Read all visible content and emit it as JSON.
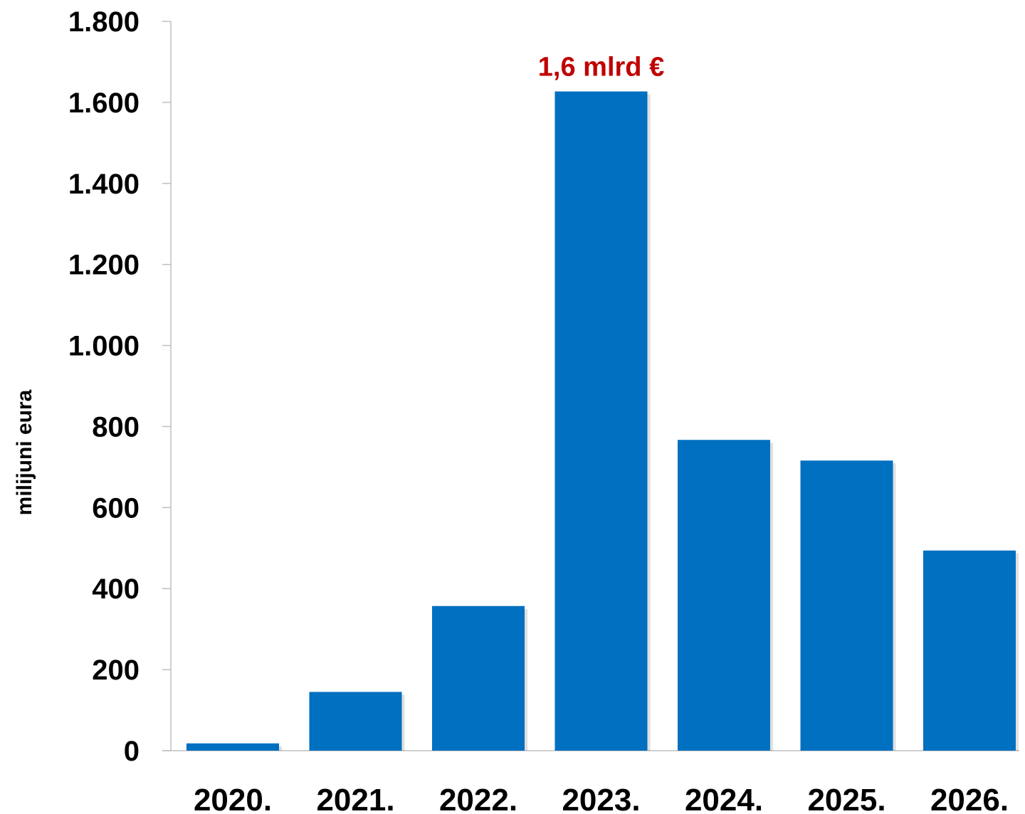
{
  "chart_data": {
    "type": "bar",
    "categories": [
      "2020.",
      "2021.",
      "2022.",
      "2023.",
      "2024.",
      "2025.",
      "2026."
    ],
    "values": [
      18,
      145,
      357,
      1627,
      767,
      716,
      494
    ],
    "xlabel": "",
    "ylabel": "milijuni eura",
    "ylim": [
      0,
      1800
    ],
    "yticks": [
      0,
      200,
      400,
      600,
      800,
      1000,
      1200,
      1400,
      1600,
      1800
    ],
    "ytick_labels": [
      "0",
      "200",
      "400",
      "600",
      "800",
      "1.000",
      "1.200",
      "1.400",
      "1.600",
      "1.800"
    ],
    "grid": false,
    "legend": "none",
    "bar_color": "#0070C0",
    "annotations": [
      {
        "category": "2023.",
        "text": "1,6 mlrd €",
        "color": "#C00000"
      }
    ]
  }
}
